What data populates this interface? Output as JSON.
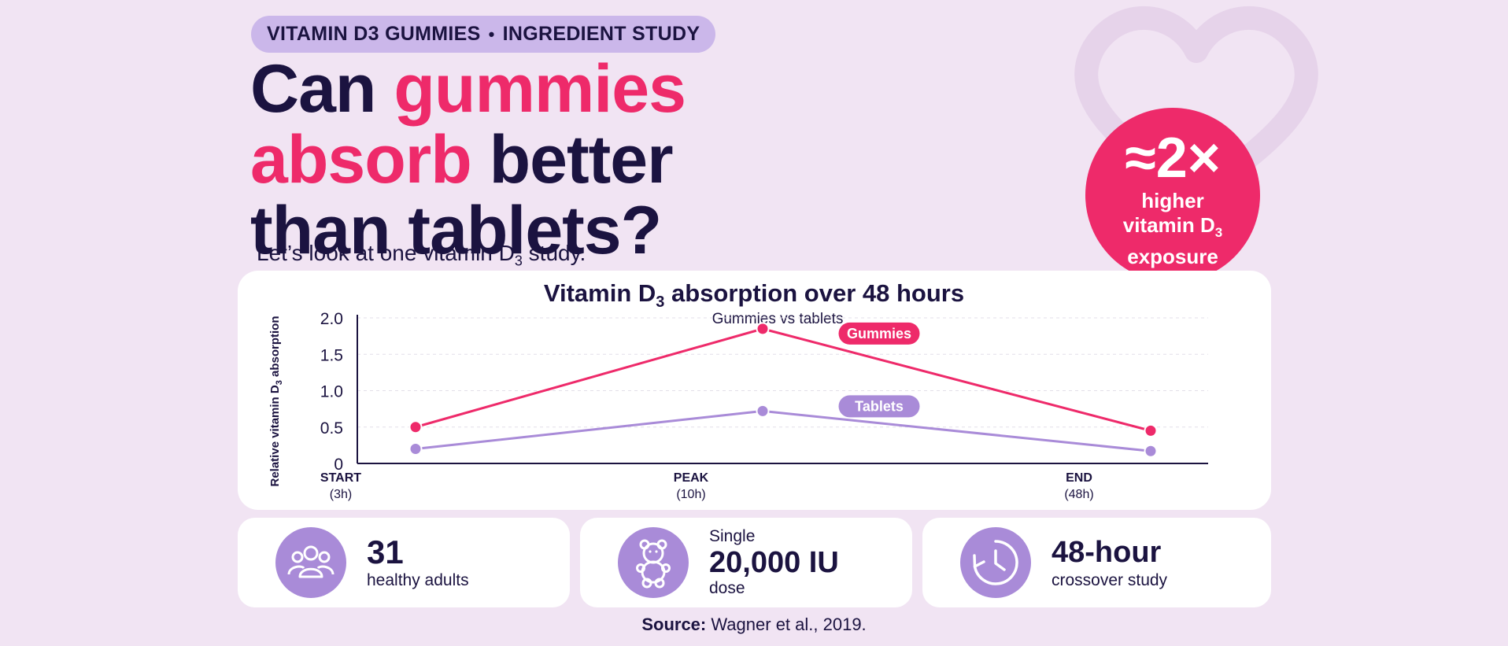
{
  "header": {
    "pill_left": "VITAMIN D3 GUMMIES",
    "pill_sep": "•",
    "pill_right": "INGREDIENT STUDY",
    "headline": {
      "w1": "Can ",
      "w2": "gummies",
      "w3": "absorb",
      "w4": " better",
      "w5": "than tablets?"
    },
    "subhead_pre": "Let’s look at one vitamin D",
    "subhead_sub": "3",
    "subhead_post": " study."
  },
  "badge": {
    "big": "≈2×",
    "line1": "higher",
    "line2_pre": "vitamin D",
    "line2_sub": "3",
    "line3": "exposure"
  },
  "chart_data": {
    "type": "line",
    "title_pre": "Vitamin D",
    "title_sub": "3",
    "title_post": " absorption over 48 hours",
    "subtitle": "Gummies vs tablets",
    "ylabel_pre": "Relative vitamin D",
    "ylabel_sub": "3",
    "ylabel_post": " absorption",
    "ylim": [
      0,
      2.0
    ],
    "yticks": [
      "0",
      "0.5",
      "1.0",
      "1.5",
      "2.0"
    ],
    "ytick_values": [
      0,
      0.5,
      1.0,
      1.5,
      2.0
    ],
    "categories": [
      "START",
      "PEAK",
      "END"
    ],
    "category_sublabels": [
      "(3h)",
      "(10h)",
      "(48h)"
    ],
    "grid": "horizontal dashed",
    "series": [
      {
        "name": "Gummies",
        "values": [
          0.5,
          1.85,
          0.45
        ],
        "color": "#ee2a6a"
      },
      {
        "name": "Tablets",
        "values": [
          0.2,
          0.72,
          0.17
        ],
        "color": "#a98bd8"
      }
    ]
  },
  "stats": [
    {
      "icon": "people-icon",
      "big": "31",
      "small": "healthy adults"
    },
    {
      "icon": "gummy-bear-icon",
      "pre": "Single",
      "big": "20,000 IU",
      "small": "dose"
    },
    {
      "icon": "clock-icon",
      "big": "48-hour",
      "small": "crossover study"
    }
  ],
  "source": {
    "label": "Source:",
    "text": " Wagner et al., 2019."
  },
  "colors": {
    "background": "#f1e4f3",
    "pink": "#ee2a6a",
    "purple": "#a98bd8",
    "navy": "#1b1340"
  }
}
